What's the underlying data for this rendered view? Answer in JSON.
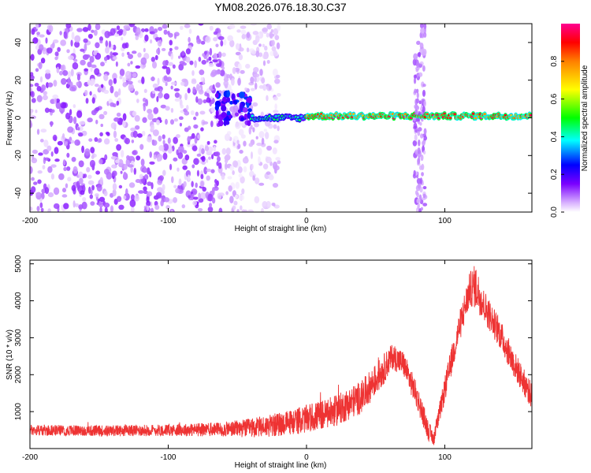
{
  "title": "YM08.2026.076.18.30.C37",
  "chart_data": [
    {
      "type": "heatmap",
      "xlabel": "Height of straight line (km)",
      "ylabel": "Frequency (Hz)",
      "xlim": [
        -200,
        163
      ],
      "ylim": [
        -50,
        50
      ],
      "xticks": [
        -200,
        -100,
        0,
        100
      ],
      "yticks": [
        -40,
        -20,
        0,
        20,
        40
      ],
      "grid": false,
      "description_bands": [
        {
          "x_range": [
            -200,
            -60
          ],
          "density": "high",
          "freq_spread": [
            -50,
            50
          ],
          "amplitude": 0.1
        },
        {
          "x_range": [
            -60,
            -20
          ],
          "density": "medium",
          "freq_spread": [
            -50,
            50
          ],
          "amplitude": 0.05
        },
        {
          "x_range": [
            -65,
            -40
          ],
          "cluster_center_freq": 5,
          "amplitude": 0.2
        },
        {
          "x_range": [
            -40,
            0
          ],
          "trace_freq": 0,
          "amplitude": 0.45
        },
        {
          "x_range": [
            0,
            163
          ],
          "trace_freq": 1,
          "amplitude": 0.95
        },
        {
          "x_range": [
            78,
            86
          ],
          "vertical_stripe": true,
          "amplitude": 0.08
        }
      ],
      "colorbar": {
        "label": "Normalized spectral amplitude",
        "range": [
          0,
          1
        ],
        "ticks": [
          0.0,
          0.2,
          0.4,
          0.6,
          0.8
        ]
      }
    },
    {
      "type": "line",
      "xlabel": "Height of straight line (km)",
      "ylabel": "SNR (10 * v/v)",
      "xlim": [
        -200,
        163
      ],
      "ylim": [
        0,
        5100
      ],
      "xticks": [
        -200,
        -100,
        0,
        100
      ],
      "yticks": [
        1000,
        2000,
        3000,
        4000,
        5000
      ],
      "color": "#ee3333",
      "series": [
        {
          "x": [
            -200,
            -150,
            -100,
            -60,
            -40,
            -20,
            0,
            20,
            40,
            55,
            62,
            70,
            80,
            88,
            92,
            100,
            110,
            118,
            122,
            128,
            140,
            150,
            163
          ],
          "values": [
            500,
            480,
            500,
            520,
            560,
            650,
            800,
            1000,
            1400,
            2100,
            2500,
            2300,
            1400,
            500,
            250,
            1600,
            3200,
            4300,
            4400,
            3900,
            3100,
            2300,
            1400
          ],
          "noise_amplitude": [
            150,
            150,
            160,
            200,
            260,
            320,
            380,
            420,
            450,
            420,
            350,
            350,
            350,
            280,
            180,
            350,
            420,
            470,
            600,
            450,
            400,
            380,
            350
          ]
        }
      ]
    }
  ]
}
